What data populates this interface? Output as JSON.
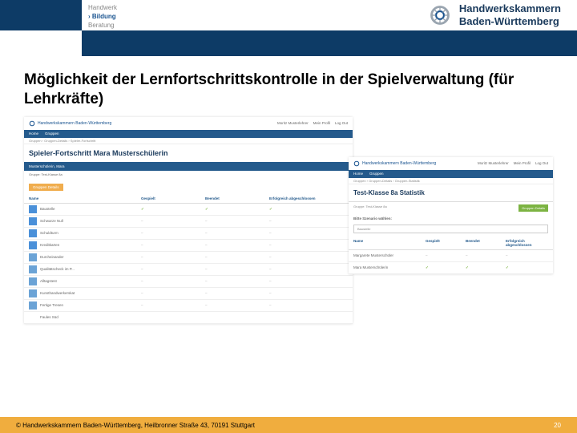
{
  "header": {
    "nav_items": [
      "Handwerk",
      "Bildung",
      "Beratung"
    ],
    "nav_active_index": 1,
    "org_name_line1": "Handwerkskammern",
    "org_name_line2": "Baden-Württemberg",
    "logo_colors": {
      "outer": "#9aa5b0",
      "inner": "#1a5490"
    }
  },
  "blue_bar_color": "#0d3b66",
  "slide": {
    "title": "Möglichkeit der Lernfortschrittskontrolle in der Spielverwaltung (für Lehrkräfte)"
  },
  "screenshot1": {
    "header_org": "Handwerkskammern Baden-Württemberg",
    "user_label": "Moritz Musterlehrer",
    "mein_bereich": "Mein Profil",
    "logout": "Log Out",
    "nav": [
      "Home",
      "Gruppen"
    ],
    "breadcrumb": "Gruppen › Gruppen-Details › Spieler-Fortschritt",
    "title": "Spieler-Fortschritt Mara Musterschülerin",
    "subhead": "Musterschülerin, Mara",
    "subsubhead": "Gruppe: Test-Klasse 8a",
    "btn_label": "Gruppen Details",
    "columns": [
      "Name",
      "Gespielt",
      "Beendet",
      "Erfolgreich abgeschlossen"
    ],
    "rows": [
      {
        "icon_color": "#4a90d9",
        "name": "Baustelle",
        "gespielt": "check",
        "beendet": "check",
        "erfolgreich": "check"
      },
      {
        "icon_color": "#4a90d9",
        "name": "Schwarze Null",
        "gespielt": "dash",
        "beendet": "dash",
        "erfolgreich": "dash"
      },
      {
        "icon_color": "#4a90d9",
        "name": "Schuldturm",
        "gespielt": "dash",
        "beendet": "dash",
        "erfolgreich": "dash"
      },
      {
        "icon_color": "#4a90d9",
        "name": "Kreditkarten",
        "gespielt": "dash",
        "beendet": "dash",
        "erfolgreich": "dash"
      },
      {
        "icon_color": "#6ba3d6",
        "name": "Durcheinander",
        "gespielt": "dash",
        "beendet": "dash",
        "erfolgreich": "dash"
      },
      {
        "icon_color": "#6ba3d6",
        "name": "Qualitätscheck im P...",
        "gespielt": "dash",
        "beendet": "dash",
        "erfolgreich": "dash"
      },
      {
        "icon_color": "#6ba3d6",
        "name": "Alltagstest",
        "gespielt": "dash",
        "beendet": "dash",
        "erfolgreich": "dash"
      },
      {
        "icon_color": "#6ba3d6",
        "name": "Kunsthandwerkerskat",
        "gespielt": "dash",
        "beendet": "dash",
        "erfolgreich": "dash"
      },
      {
        "icon_color": "#6ba3d6",
        "name": "Fertige Tresen",
        "gespielt": "dash",
        "beendet": "dash",
        "erfolgreich": "dash"
      },
      {
        "icon_color": "",
        "name": "Faules Süd",
        "gespielt": "",
        "beendet": "",
        "erfolgreich": ""
      }
    ]
  },
  "screenshot2": {
    "header_org": "Handwerkskammern Baden-Württemberg",
    "user_label": "Moritz Musterlehrer",
    "mein_bereich": "Mein Profil",
    "logout": "Log Out",
    "nav": [
      "Home",
      "Gruppen"
    ],
    "breadcrumb": "Gruppen › Gruppen-Details › Gruppen-Statistik",
    "title": "Test-Klasse 8a Statistik",
    "subgroup": "Gruppe: Test-Klasse 8a",
    "szenario_label": "Bitte Szenario wählen:",
    "szenario_value": "Baustelle",
    "btn_right": "Gruppen Details",
    "columns": [
      "Name",
      "Gespielt",
      "Beendet",
      "Erfolgreich abgeschlossen"
    ],
    "rows": [
      {
        "name": "Margarete Musterschüler",
        "gespielt": "dash",
        "beendet": "dash",
        "erfolgreich": "dash"
      },
      {
        "name": "Mara Musterschülerin",
        "gespielt": "check",
        "beendet": "check",
        "erfolgreich": "check"
      }
    ]
  },
  "footer": {
    "copyright": "© Handwerkskammern Baden-Württemberg, Heilbronner Straße 43, 70191 Stuttgart",
    "page": "20"
  },
  "colors": {
    "accent_blue": "#245a8c",
    "orange": "#f0ad3e",
    "green_btn": "#7cb342"
  }
}
